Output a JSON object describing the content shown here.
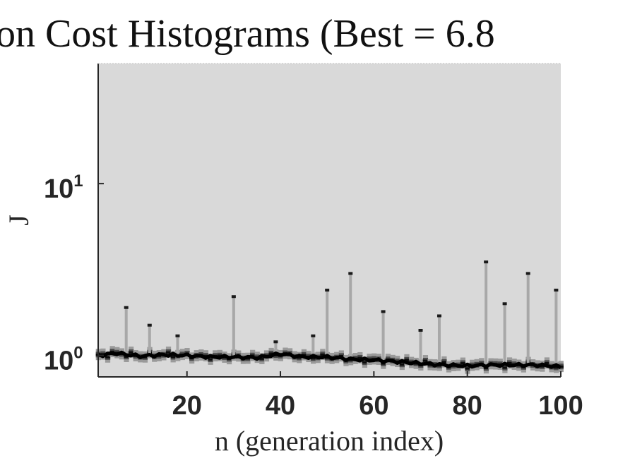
{
  "chart_data": {
    "type": "heatmap",
    "title": "on Cost Histograms (Best = 6.8",
    "xlabel": "n (generation index)",
    "ylabel": "J",
    "xlim": [
      1,
      100
    ],
    "ylim": [
      0.75,
      50
    ],
    "yscale": "log",
    "xticks": [
      20,
      40,
      60,
      80,
      100
    ],
    "xtick_labels": [
      "20",
      "40",
      "60",
      "80",
      "100"
    ],
    "yticks": [
      {
        "value": 1,
        "base": "10",
        "exp": "0"
      },
      {
        "value": 10,
        "base": "10",
        "exp": "1"
      }
    ],
    "grid": false,
    "colormap": "gray (dark = high count)",
    "background_color": "#d9d9d9",
    "median_ridge": {
      "x": [
        1,
        5,
        10,
        15,
        20,
        25,
        30,
        35,
        40,
        45,
        50,
        55,
        60,
        65,
        70,
        75,
        80,
        85,
        90,
        95,
        100
      ],
      "y": [
        1.0,
        1.03,
        0.99,
        1.01,
        1.0,
        0.98,
        0.98,
        0.97,
        1.02,
        0.98,
        0.98,
        0.95,
        0.94,
        0.92,
        0.9,
        0.88,
        0.87,
        0.88,
        0.88,
        0.88,
        0.86
      ]
    },
    "spikes": [
      {
        "x": 7,
        "y": 1.9
      },
      {
        "x": 12,
        "y": 1.5
      },
      {
        "x": 18,
        "y": 1.3
      },
      {
        "x": 30,
        "y": 2.2
      },
      {
        "x": 39,
        "y": 1.2
      },
      {
        "x": 47,
        "y": 1.3
      },
      {
        "x": 50,
        "y": 2.4
      },
      {
        "x": 55,
        "y": 3.0
      },
      {
        "x": 62,
        "y": 1.8
      },
      {
        "x": 70,
        "y": 1.4
      },
      {
        "x": 74,
        "y": 1.7
      },
      {
        "x": 84,
        "y": 3.5
      },
      {
        "x": 88,
        "y": 2.0
      },
      {
        "x": 93,
        "y": 3.0
      },
      {
        "x": 99,
        "y": 2.4
      }
    ]
  }
}
